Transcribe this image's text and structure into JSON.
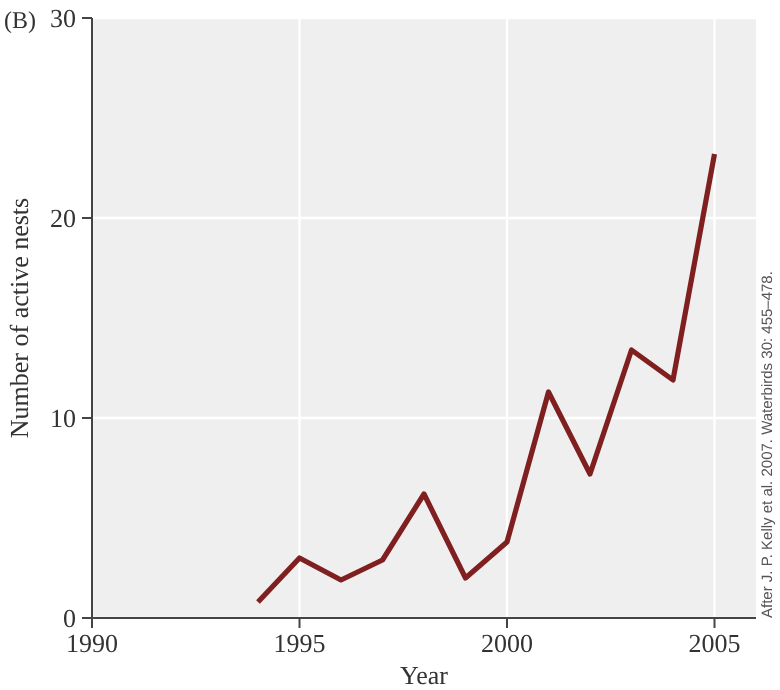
{
  "chart_data": {
    "type": "line",
    "title": "(B)",
    "xlabel": "Year",
    "ylabel": "Number of active nests",
    "annotations": [
      "After J. P. Kelly et al. 2007. Waterbirds 30: 455–478."
    ],
    "x": [
      1994,
      1995,
      1996,
      1997,
      1998,
      1999,
      2000,
      2001,
      2002,
      2003,
      2004,
      2005
    ],
    "series": [
      {
        "color": "#7f1f1f",
        "values": [
          0.8,
          3,
          1.9,
          2.9,
          6.2,
          2,
          3.8,
          11.3,
          7.2,
          13.4,
          11.9,
          23.2
        ]
      }
    ],
    "xlim": [
      1990,
      2006
    ],
    "ylim": [
      0,
      30
    ],
    "xticks": [
      1990,
      1995,
      2000,
      2005
    ],
    "yticks": [
      0,
      10,
      20,
      30
    ],
    "grid": true,
    "marker": "none",
    "line_style": "solid"
  }
}
